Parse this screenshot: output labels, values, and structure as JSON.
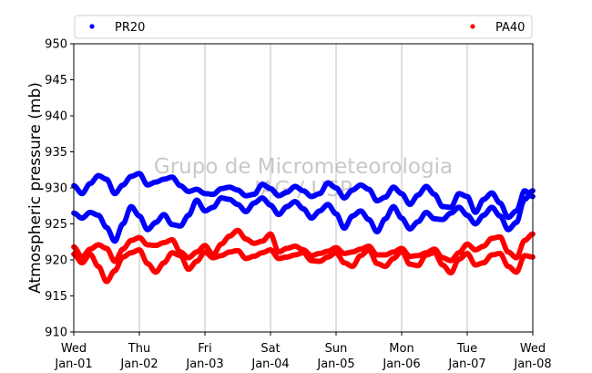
{
  "chart_data": {
    "type": "scatter",
    "ylabel": "Atmospheric pressure (mb)",
    "ylim": [
      910,
      950
    ],
    "yticks": [
      910,
      915,
      920,
      925,
      930,
      935,
      940,
      945,
      950
    ],
    "xlim_days": [
      0,
      7
    ],
    "xticks": [
      {
        "day": "Wed",
        "date": "Jan-01"
      },
      {
        "day": "Thu",
        "date": "Jan-02"
      },
      {
        "day": "Fri",
        "date": "Jan-03"
      },
      {
        "day": "Sat",
        "date": "Jan-04"
      },
      {
        "day": "Sun",
        "date": "Jan-05"
      },
      {
        "day": "Mon",
        "date": "Jan-06"
      },
      {
        "day": "Tue",
        "date": "Jan-07"
      },
      {
        "day": "Wed",
        "date": "Jan-08"
      }
    ],
    "grid_x": true,
    "grid_y": false,
    "legend_position": "top",
    "watermark": [
      "Grupo de Micrometeorologia",
      "IAG / USP"
    ],
    "series": [
      {
        "name": "PR20",
        "color": "#0000ff",
        "traces": [
          {
            "x": [
              0,
              0.125,
              0.25,
              0.375,
              0.5,
              0.625,
              0.75,
              0.875,
              1.0,
              1.125,
              1.25,
              1.375,
              1.5,
              1.625,
              1.75,
              1.875,
              2.0,
              2.125,
              2.25,
              2.375,
              2.5,
              2.625,
              2.75,
              2.875,
              3.0,
              3.125,
              3.25,
              3.375,
              3.5,
              3.625,
              3.75,
              3.875,
              4.0,
              4.125,
              4.25,
              4.375,
              4.5,
              4.625,
              4.75,
              4.875,
              5.0,
              5.125,
              5.25,
              5.375,
              5.5,
              5.625,
              5.75,
              5.875,
              6.0,
              6.125,
              6.25,
              6.375,
              6.5,
              6.625,
              6.75,
              6.875,
              7.0
            ],
            "y": [
              930.3,
              929.2,
              930.6,
              931.7,
              931.2,
              929.2,
              930.4,
              931.6,
              932.0,
              930.4,
              930.8,
              931.2,
              931.5,
              930.3,
              929.5,
              929.8,
              929.2,
              929.1,
              929.9,
              930.1,
              929.7,
              928.9,
              929.1,
              930.5,
              929.9,
              928.9,
              929.4,
              930.2,
              929.6,
              928.8,
              929.2,
              930.7,
              930.0,
              928.6,
              929.7,
              930.4,
              929.8,
              928.2,
              928.7,
              930.1,
              929.2,
              927.7,
              929.0,
              930.2,
              929.1,
              927.4,
              927.3,
              929.2,
              928.8,
              926.6,
              928.4,
              929.3,
              927.9,
              925.9,
              926.8,
              929.6,
              928.8
            ]
          },
          {
            "x": [
              0,
              0.125,
              0.25,
              0.375,
              0.5,
              0.625,
              0.75,
              0.875,
              1.0,
              1.125,
              1.25,
              1.375,
              1.5,
              1.625,
              1.75,
              1.875,
              2.0,
              2.125,
              2.25,
              2.375,
              2.5,
              2.625,
              2.75,
              2.875,
              3.0,
              3.125,
              3.25,
              3.375,
              3.5,
              3.625,
              3.75,
              3.875,
              4.0,
              4.125,
              4.25,
              4.375,
              4.5,
              4.625,
              4.75,
              4.875,
              5.0,
              5.125,
              5.25,
              5.375,
              5.5,
              5.625,
              5.75,
              5.875,
              6.0,
              6.125,
              6.25,
              6.375,
              6.5,
              6.625,
              6.75,
              6.875,
              7.0
            ],
            "y": [
              926.5,
              925.8,
              926.6,
              926.2,
              924.5,
              922.6,
              925.0,
              927.4,
              926.1,
              924.2,
              925.2,
              926.3,
              924.9,
              924.7,
              926.2,
              928.3,
              926.8,
              927.3,
              928.6,
              928.4,
              927.7,
              926.7,
              927.9,
              928.6,
              927.6,
              926.3,
              927.4,
              928.1,
              927.1,
              925.8,
              926.8,
              927.7,
              926.4,
              924.4,
              926.1,
              926.8,
              925.6,
              923.9,
              925.7,
              927.4,
              925.8,
              924.3,
              925.3,
              926.6,
              925.7,
              925.6,
              926.5,
              927.3,
              926.2,
              925.0,
              926.2,
              927.3,
              926.1,
              924.2,
              925.2,
              928.4,
              929.6
            ]
          }
        ]
      },
      {
        "name": "PA40",
        "color": "#ff0000",
        "traces": [
          {
            "x": [
              0,
              0.125,
              0.25,
              0.375,
              0.5,
              0.625,
              0.75,
              0.875,
              1.0,
              1.125,
              1.25,
              1.375,
              1.5,
              1.625,
              1.75,
              1.875,
              2.0,
              2.125,
              2.25,
              2.375,
              2.5,
              2.625,
              2.75,
              2.875,
              3.0,
              3.125,
              3.25,
              3.375,
              3.5,
              3.625,
              3.75,
              3.875,
              4.0,
              4.125,
              4.25,
              4.375,
              4.5,
              4.625,
              4.75,
              4.875,
              5.0,
              5.125,
              5.25,
              5.375,
              5.5,
              5.625,
              5.75,
              5.875,
              6.0,
              6.125,
              6.25,
              6.375,
              6.5,
              6.625,
              6.75,
              6.875,
              7.0
            ],
            "y": [
              921.8,
              920.4,
              921.5,
              922.1,
              921.6,
              919.8,
              921.5,
              922.7,
              923.1,
              922.1,
              922.0,
              922.4,
              922.8,
              921.1,
              920.3,
              921.1,
              922.0,
              920.7,
              922.2,
              923.3,
              924.1,
              922.9,
              922.3,
              922.6,
              923.6,
              921.1,
              921.6,
              921.9,
              921.4,
              920.6,
              920.9,
              921.2,
              921.7,
              920.9,
              921.1,
              921.5,
              921.9,
              920.7,
              920.7,
              921.1,
              921.6,
              920.5,
              920.6,
              921.0,
              921.5,
              920.3,
              919.9,
              921.0,
              922.2,
              921.4,
              921.9,
              923.0,
              923.2,
              921.1,
              920.3,
              922.7,
              923.6
            ]
          },
          {
            "x": [
              0,
              0.125,
              0.25,
              0.375,
              0.5,
              0.625,
              0.75,
              0.875,
              1.0,
              1.125,
              1.25,
              1.375,
              1.5,
              1.625,
              1.75,
              1.875,
              2.0,
              2.125,
              2.25,
              2.375,
              2.5,
              2.625,
              2.75,
              2.875,
              3.0,
              3.125,
              3.25,
              3.375,
              3.5,
              3.625,
              3.75,
              3.875,
              4.0,
              4.125,
              4.25,
              4.375,
              4.5,
              4.625,
              4.75,
              4.875,
              5.0,
              5.125,
              5.25,
              5.375,
              5.5,
              5.625,
              5.75,
              5.875,
              6.0,
              6.125,
              6.25,
              6.375,
              6.5,
              6.625,
              6.75,
              6.875,
              7.0
            ],
            "y": [
              920.8,
              919.6,
              920.8,
              919.1,
              917.0,
              918.5,
              920.4,
              921.0,
              921.4,
              919.5,
              918.3,
              919.6,
              921.0,
              920.6,
              918.7,
              919.8,
              921.1,
              920.3,
              920.6,
              921.1,
              921.3,
              920.2,
              920.5,
              921.0,
              921.4,
              920.2,
              920.4,
              920.7,
              921.0,
              919.9,
              919.8,
              920.4,
              921.0,
              919.6,
              919.1,
              920.6,
              921.4,
              919.5,
              919.1,
              920.2,
              921.2,
              919.4,
              919.2,
              920.7,
              921.0,
              919.3,
              918.2,
              920.1,
              920.9,
              919.3,
              919.6,
              920.7,
              920.9,
              919.1,
              918.3,
              920.6,
              920.4
            ]
          }
        ]
      }
    ]
  }
}
